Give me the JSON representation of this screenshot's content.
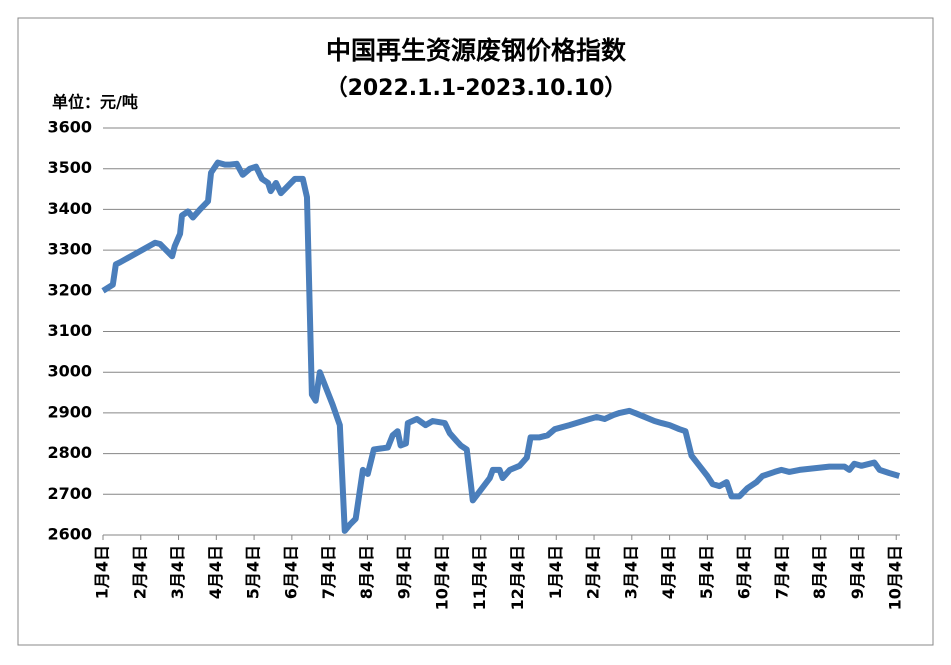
{
  "chart_data": {
    "type": "line",
    "title": "中国再生资源废钢价格指数",
    "subtitle": "（2022.1.1-2023.10.10）",
    "y_label": "单位：元/吨",
    "x": [
      0,
      0.26,
      0.34,
      0.45,
      1.38,
      1.51,
      1.83,
      1.9,
      2.04,
      2.09,
      2.25,
      2.38,
      2.57,
      2.78,
      2.86,
      3.04,
      3.23,
      3.36,
      3.54,
      3.7,
      3.89,
      4.05,
      4.21,
      4.37,
      4.44,
      4.58,
      4.71,
      4.87,
      5.08,
      5.29,
      5.4,
      5.53,
      5.63,
      5.74,
      6.08,
      6.27,
      6.4,
      6.53,
      6.69,
      6.88,
      7.01,
      7.17,
      7.54,
      7.67,
      7.8,
      7.88,
      8.02,
      8.07,
      8.31,
      8.54,
      8.73,
      9.05,
      9.18,
      9.37,
      9.47,
      9.63,
      9.79,
      10.24,
      10.32,
      10.5,
      10.58,
      10.77,
      11.03,
      11.22,
      11.32,
      11.56,
      11.77,
      11.96,
      12.35,
      12.88,
      13.07,
      13.28,
      13.52,
      13.68,
      13.94,
      14.21,
      14.6,
      14.79,
      15.0,
      15.26,
      15.42,
      15.58,
      15.79,
      16.0,
      16.14,
      16.32,
      16.51,
      16.64,
      16.85,
      17.06,
      17.3,
      17.46,
      17.78,
      17.96,
      18.17,
      18.44,
      19.23,
      19.63,
      19.76,
      19.89,
      20.08,
      20.42,
      20.56,
      20.82,
      21.08
    ],
    "series": [
      {
        "name": "废钢价格指数",
        "color": "#4a7ebb",
        "values": [
          3200,
          3215,
          3265,
          3270,
          3318,
          3315,
          3285,
          3310,
          3340,
          3385,
          3395,
          3380,
          3400,
          3420,
          3490,
          3515,
          3510,
          3510,
          3512,
          3485,
          3500,
          3505,
          3475,
          3465,
          3445,
          3465,
          3440,
          3455,
          3475,
          3475,
          3430,
          2945,
          2930,
          3000,
          2920,
          2870,
          2610,
          2625,
          2640,
          2760,
          2750,
          2810,
          2815,
          2845,
          2855,
          2820,
          2825,
          2875,
          2885,
          2870,
          2880,
          2875,
          2850,
          2830,
          2820,
          2810,
          2685,
          2740,
          2760,
          2760,
          2740,
          2760,
          2770,
          2790,
          2840,
          2840,
          2845,
          2860,
          2870,
          2885,
          2890,
          2885,
          2895,
          2900,
          2905,
          2895,
          2880,
          2875,
          2870,
          2860,
          2855,
          2795,
          2770,
          2745,
          2725,
          2720,
          2730,
          2695,
          2695,
          2715,
          2730,
          2745,
          2755,
          2760,
          2755,
          2760,
          2768,
          2768,
          2760,
          2775,
          2770,
          2778,
          2760,
          2752,
          2745
        ]
      }
    ],
    "xlim": [
      0,
      21.1
    ],
    "xticks": [
      {
        "value": 0,
        "label": "1月4日"
      },
      {
        "value": 1,
        "label": "2月4日"
      },
      {
        "value": 2,
        "label": "3月4日"
      },
      {
        "value": 3,
        "label": "4月4日"
      },
      {
        "value": 4,
        "label": "5月4日"
      },
      {
        "value": 5,
        "label": "6月4日"
      },
      {
        "value": 6,
        "label": "7月4日"
      },
      {
        "value": 7,
        "label": "8月4日"
      },
      {
        "value": 8,
        "label": "9月4日"
      },
      {
        "value": 9,
        "label": "10月4日"
      },
      {
        "value": 10,
        "label": "11月4日"
      },
      {
        "value": 11,
        "label": "12月4日"
      },
      {
        "value": 12,
        "label": "1月4日"
      },
      {
        "value": 13,
        "label": "2月4日"
      },
      {
        "value": 14,
        "label": "3月4日"
      },
      {
        "value": 15,
        "label": "4月4日"
      },
      {
        "value": 16,
        "label": "5月4日"
      },
      {
        "value": 17,
        "label": "6月4日"
      },
      {
        "value": 18,
        "label": "7月4日"
      },
      {
        "value": 19,
        "label": "8月4日"
      },
      {
        "value": 20,
        "label": "9月4日"
      },
      {
        "value": 21,
        "label": "10月4日"
      }
    ],
    "ylim": [
      2600,
      3600
    ],
    "yticks": [
      2600,
      2700,
      2800,
      2900,
      3000,
      3100,
      3200,
      3300,
      3400,
      3500,
      3600
    ],
    "grid": true
  }
}
